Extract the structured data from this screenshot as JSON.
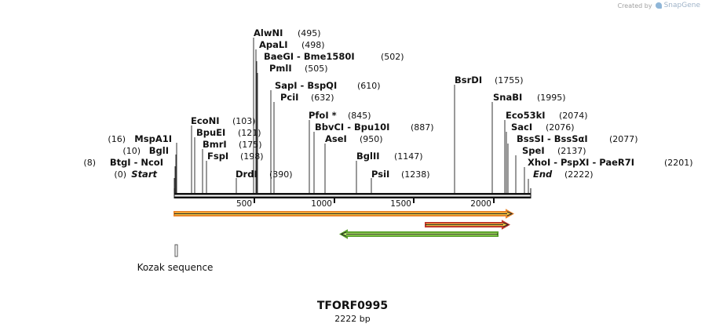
{
  "credit": {
    "prefix": "Created by",
    "brand": "SnapGene",
    "brand_icon": "snapgene-icon"
  },
  "construct": {
    "name": "TFORF0995",
    "length_label": "2222 bp",
    "length": 2222
  },
  "ruler": {
    "ticks": [
      {
        "value": 500,
        "label": "500"
      },
      {
        "value": 1000,
        "label": "1000"
      },
      {
        "value": 1500,
        "label": "1500"
      },
      {
        "value": 2000,
        "label": "2000"
      }
    ]
  },
  "sites": {
    "left": [
      {
        "id": "start",
        "name": "Start",
        "position": "(0)",
        "italic": true
      },
      {
        "id": "btgi",
        "name": "BtgI  -  NcoI",
        "position": "(8)"
      },
      {
        "id": "bgli",
        "name": "BglI",
        "position": "(10)"
      },
      {
        "id": "mspa1i",
        "name": "MspA1I",
        "position": "(16)"
      }
    ],
    "mid": [
      {
        "id": "econi",
        "name": "EcoNI",
        "position": "(103)"
      },
      {
        "id": "bpuei",
        "name": "BpuEI",
        "position": "(121)"
      },
      {
        "id": "bmri",
        "name": "BmrI",
        "position": "(175)"
      },
      {
        "id": "fspi",
        "name": "FspI",
        "position": "(198)"
      },
      {
        "id": "alwni",
        "name": "AlwNI",
        "position": "(495)"
      },
      {
        "id": "apali",
        "name": "ApaLI",
        "position": "(498)"
      },
      {
        "id": "baegi",
        "name": "BaeGI  -  Bme1580I",
        "position": "(502)"
      },
      {
        "id": "pmli",
        "name": "PmlI",
        "position": "(505)"
      },
      {
        "id": "drdi",
        "name": "DrdI",
        "position": "(390)"
      },
      {
        "id": "sapi",
        "name": "SapI  -  BspQI",
        "position": "(610)"
      },
      {
        "id": "pcii",
        "name": "PciI",
        "position": "(632)"
      },
      {
        "id": "pfoi",
        "name": "PfoI *",
        "position": "(845)"
      },
      {
        "id": "bbvci",
        "name": "BbvCI  -  Bpu10I",
        "position": "(887)"
      },
      {
        "id": "asei",
        "name": "AseI",
        "position": "(950)"
      },
      {
        "id": "bglii",
        "name": "BglII",
        "position": "(1147)"
      },
      {
        "id": "psii",
        "name": "PsiI",
        "position": "(1238)"
      },
      {
        "id": "bsrdi",
        "name": "BsrDI",
        "position": "(1755)"
      }
    ],
    "right": [
      {
        "id": "snabi",
        "name": "SnaBI",
        "position": "(1995)"
      },
      {
        "id": "eco53ki",
        "name": "Eco53kI",
        "position": "(2074)"
      },
      {
        "id": "saci",
        "name": "SacI",
        "position": "(2076)"
      },
      {
        "id": "bsssi",
        "name": "BssSI  -  BssSαI",
        "position": "(2077)"
      },
      {
        "id": "spei",
        "name": "SpeI",
        "position": "(2137)"
      },
      {
        "id": "xhoi",
        "name": "XhoI  -  PspXI  -  PaeR7I",
        "position": "(2201)"
      },
      {
        "id": "end",
        "name": "End",
        "position": "(2222)",
        "italic": true
      }
    ]
  },
  "features": [
    {
      "id": "orf-main",
      "label": "",
      "fill": "#f5c842",
      "stroke": "#e8862a",
      "direction": "forward"
    },
    {
      "id": "orf-short",
      "label": "",
      "fill": "#f5c842",
      "stroke": "#c0392b",
      "direction": "forward"
    },
    {
      "id": "orf-reverse",
      "label": "",
      "fill": "#b6f06a",
      "stroke": "#5aa02c",
      "direction": "reverse"
    },
    {
      "id": "kozak",
      "label": "Kozak sequence",
      "fill": "#ffffff",
      "stroke": "#555555",
      "direction": "none"
    }
  ]
}
